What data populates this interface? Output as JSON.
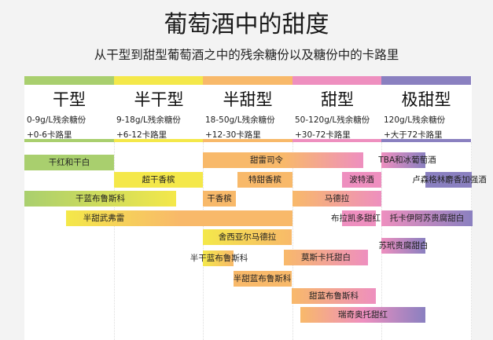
{
  "title": "葡萄酒中的甜度",
  "subtitle": "从干型到甜型葡萄酒之中的残余糖份以及糖份中的卡路里",
  "colors": {
    "dry": "#a9cf6e",
    "off_dry": "#f4e84a",
    "semi_sweet": "#f8b96a",
    "sweet": "#ee8fbf",
    "very_sweet": "#8a80c0"
  },
  "columns": [
    {
      "name": "干型",
      "sugar": "0-9g/L残余糖份",
      "calories": "+0-6卡路里"
    },
    {
      "name": "半干型",
      "sugar": "9-18g/L残余糖份",
      "calories": "+6-12卡路里"
    },
    {
      "name": "半甜型",
      "sugar": "18-50g/L残余糖份",
      "calories": "+12-30卡路里"
    },
    {
      "name": "甜型",
      "sugar": "50-120g/L残余糖份",
      "calories": "+30-72卡路里"
    },
    {
      "name": "极甜型",
      "sugar": "120g/L残余糖份",
      "calories": "+大于72卡路里"
    }
  ],
  "wines": [
    "干红和干白",
    "甜雷司令",
    "TBA和冰葡萄酒",
    "超干香槟",
    "特甜香槟",
    "波特酒",
    "卢森格林麝香加强酒",
    "干蓝布鲁斯科",
    "干香槟",
    "马德拉",
    "半甜武弗雷",
    "布拉凯多甜红",
    "托卡伊阿苏贵腐甜白",
    "舍西亚尔马德拉",
    "苏玳贵腐甜白",
    "半干蓝布鲁斯科",
    "莫斯卡托甜白",
    "半甜蓝布鲁斯科",
    "甜蓝布鲁斯科",
    "瑞奇奥托甜红"
  ]
}
